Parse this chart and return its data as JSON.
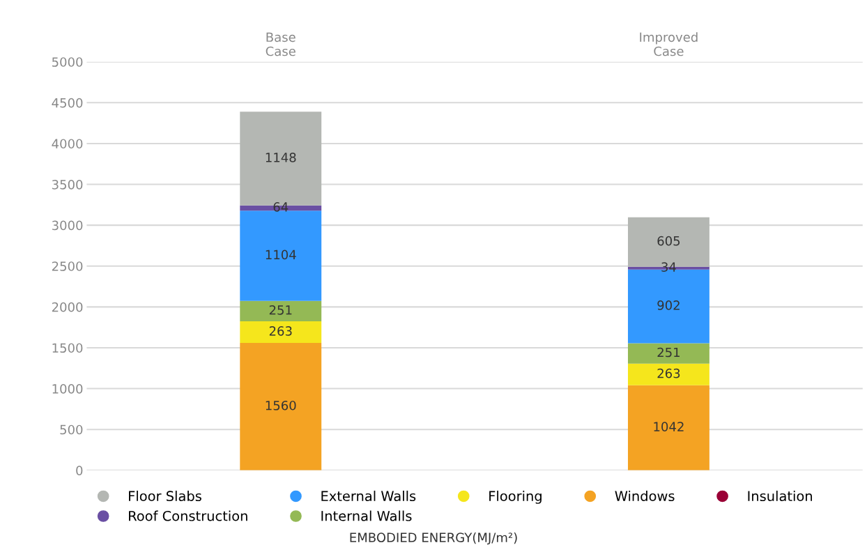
{
  "chart_data": {
    "type": "bar",
    "stacked": true,
    "xlabel": "EMBODIED ENERGY(MJ/m²)",
    "categories": [
      "Base Case",
      "Improved Case"
    ],
    "ylim": [
      0,
      5000
    ],
    "yticks": [
      0,
      500,
      1000,
      1500,
      2000,
      2500,
      3000,
      3500,
      4000,
      4500,
      5000
    ],
    "grid": "y",
    "legend": "bottom",
    "marker": "circle",
    "series": [
      {
        "name": "Insulation",
        "color": "#9a0036",
        "values": [
          0,
          0
        ],
        "value_labels": [
          null,
          null
        ]
      },
      {
        "name": "Windows",
        "color": "#f4a323",
        "values": [
          1560,
          1042
        ],
        "value_labels": [
          "1560",
          "1042"
        ]
      },
      {
        "name": "Flooring",
        "color": "#f5e61c",
        "values": [
          263,
          263
        ],
        "value_labels": [
          "263",
          "263"
        ]
      },
      {
        "name": "Internal Walls",
        "color": "#94b955",
        "values": [
          251,
          251
        ],
        "value_labels": [
          "251",
          "251"
        ]
      },
      {
        "name": "External Walls",
        "color": "#3399ff",
        "values": [
          1104,
          902
        ],
        "value_labels": [
          "1104",
          "902"
        ]
      },
      {
        "name": "Roof Construction",
        "color": "#6a4fa3",
        "values": [
          64,
          34
        ],
        "value_labels": [
          "64",
          "34"
        ]
      },
      {
        "name": "Floor Slabs",
        "color": "#b4b7b3",
        "values": [
          1148,
          605
        ],
        "value_labels": [
          "1148",
          "605"
        ]
      }
    ]
  }
}
